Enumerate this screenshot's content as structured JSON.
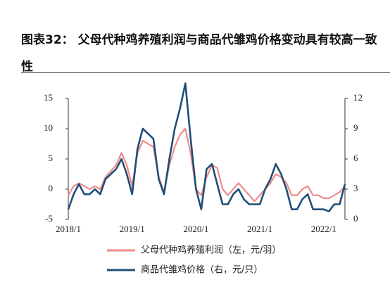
{
  "chart_data": {
    "type": "line",
    "title": "图表32：  父母代种鸡养殖利润与商品代雏鸡价格变动具有较高一致性",
    "x": [
      "2018-01",
      "2018-02",
      "2018-03",
      "2018-04",
      "2018-05",
      "2018-06",
      "2018-07",
      "2018-08",
      "2018-09",
      "2018-10",
      "2018-11",
      "2018-12",
      "2019-01",
      "2019-02",
      "2019-03",
      "2019-04",
      "2019-05",
      "2019-06",
      "2019-07",
      "2019-08",
      "2019-09",
      "2019-10",
      "2019-11",
      "2019-12",
      "2020-01",
      "2020-02",
      "2020-03",
      "2020-04",
      "2020-05",
      "2020-06",
      "2020-07",
      "2020-08",
      "2020-09",
      "2020-10",
      "2020-11",
      "2020-12",
      "2021-01",
      "2021-02",
      "2021-03",
      "2021-04",
      "2021-05",
      "2021-06",
      "2021-07",
      "2021-08",
      "2021-09",
      "2021-10",
      "2021-11",
      "2021-12",
      "2022-01",
      "2022-02",
      "2022-03",
      "2022-04",
      "2022-05"
    ],
    "xlim": [
      "2018-01",
      "2022-05"
    ],
    "xticks": [
      {
        "value": "2018-01",
        "label": "2018/1"
      },
      {
        "value": "2019-01",
        "label": "2019/1"
      },
      {
        "value": "2020-01",
        "label": "2020/1"
      },
      {
        "value": "2021-01",
        "label": "2021/1"
      },
      {
        "value": "2022-01",
        "label": "2022/1"
      }
    ],
    "ylim": [
      -5,
      15
    ],
    "yticks": [
      -5,
      0,
      5,
      10,
      15
    ],
    "y2lim": [
      0,
      12
    ],
    "y2ticks": [
      0,
      3,
      6,
      9,
      12
    ],
    "series": [
      {
        "name": "父母代种鸡养殖利润（左，元/羽）",
        "color": "#f08b8b",
        "values": [
          -1,
          0.5,
          1,
          0.5,
          0,
          0.5,
          0,
          2,
          3,
          4,
          6,
          4,
          0.5,
          6,
          8,
          7.5,
          7,
          2,
          -0.5,
          4,
          7,
          9,
          10,
          6,
          0,
          -1,
          2,
          4,
          3.5,
          0,
          -1,
          0,
          1,
          0,
          -1,
          -2,
          -1,
          0,
          1,
          2.5,
          2,
          1,
          -1,
          -1,
          0,
          0.5,
          -1,
          -1,
          -1.5,
          -1.5,
          -1,
          -0.5,
          0.5
        ]
      },
      {
        "name": "商品代雏鸡价格（右，元/只）",
        "color": "#1f4e79",
        "axis": "y2",
        "values": [
          1,
          2.5,
          3.5,
          2.5,
          2.5,
          3,
          2.5,
          4,
          4.5,
          5,
          6,
          4.5,
          2.5,
          7,
          9,
          8.5,
          8,
          4,
          2.5,
          6,
          9,
          11,
          13.5,
          8,
          3,
          1,
          5,
          5.5,
          3.5,
          1.5,
          1.5,
          2.5,
          3,
          2,
          1.5,
          1.5,
          1.5,
          3,
          4,
          5.5,
          4.5,
          3,
          1,
          1,
          2,
          2.5,
          1,
          1,
          1,
          0.8,
          1.5,
          1.5,
          3.5
        ]
      }
    ]
  }
}
